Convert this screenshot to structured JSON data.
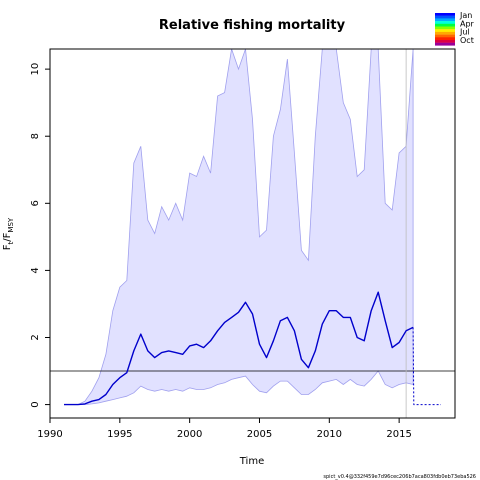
{
  "chart_data": {
    "type": "line",
    "title": "Relative fishing mortality",
    "xlabel": "Time",
    "ylabel": {
      "base": "F",
      "sub1": "t",
      "mid": "/F",
      "sub2": "MSY"
    },
    "xlim": [
      1990,
      2019
    ],
    "ylim": [
      -0.4,
      10.6
    ],
    "x_ticks": [
      1990,
      1995,
      2000,
      2005,
      2010,
      2015
    ],
    "y_ticks": [
      0,
      2,
      4,
      6,
      8,
      10
    ],
    "reference_line": 1,
    "forecast_start": 2015.5,
    "legend": {
      "position": "top-right",
      "entries": [
        "Jan",
        "Apr",
        "Jul",
        "Oct"
      ]
    },
    "footer": "spict_v0.4@332f459e7d96cec206b7aca803fdb0eb73eba526",
    "series": [
      {
        "role": "estimate",
        "color": "#0000cc",
        "x": [
          1991,
          1992,
          1992.5,
          1993,
          1993.5,
          1994,
          1994.5,
          1995,
          1995.5,
          1996,
          1996.5,
          1997,
          1997.5,
          1998,
          1998.5,
          1999,
          1999.5,
          2000,
          2000.5,
          2001,
          2001.5,
          2002,
          2002.5,
          2003,
          2003.5,
          2004,
          2004.5,
          2005,
          2005.5,
          2006,
          2006.5,
          2007,
          2007.5,
          2008,
          2008.5,
          2009,
          2009.5,
          2010,
          2010.5,
          2011,
          2011.5,
          2012,
          2012.5,
          2013,
          2013.5,
          2014,
          2014.5,
          2015,
          2015.5,
          2016
        ],
        "values": [
          0,
          0,
          0.02,
          0.1,
          0.15,
          0.3,
          0.6,
          0.8,
          0.95,
          1.6,
          2.1,
          1.6,
          1.4,
          1.55,
          1.6,
          1.55,
          1.5,
          1.75,
          1.8,
          1.7,
          1.9,
          2.2,
          2.45,
          2.6,
          2.75,
          3.05,
          2.7,
          1.8,
          1.4,
          1.9,
          2.5,
          2.6,
          2.2,
          1.35,
          1.1,
          1.6,
          2.4,
          2.8,
          2.8,
          2.6,
          2.6,
          2.0,
          1.9,
          2.8,
          3.35,
          2.5,
          1.7,
          1.85,
          2.2,
          2.3
        ]
      },
      {
        "role": "forecast",
        "color": "#0000cc",
        "x": [
          2016,
          2016.05,
          2018
        ],
        "values": [
          2.3,
          0,
          0
        ]
      }
    ],
    "confidence_band": {
      "x": [
        1991,
        1992,
        1992.5,
        1993,
        1993.5,
        1994,
        1994.5,
        1995,
        1995.5,
        1996,
        1996.5,
        1997,
        1997.5,
        1998,
        1998.5,
        1999,
        1999.5,
        2000,
        2000.5,
        2001,
        2001.5,
        2002,
        2002.5,
        2003,
        2003.5,
        2004,
        2004.5,
        2005,
        2005.5,
        2006,
        2006.5,
        2007,
        2007.5,
        2008,
        2008.5,
        2009,
        2009.5,
        2010,
        2010.5,
        2011,
        2011.5,
        2012,
        2012.5,
        2013,
        2013.5,
        2014,
        2014.5,
        2015,
        2015.5,
        2016
      ],
      "upper": [
        0,
        0,
        0.1,
        0.4,
        0.8,
        1.5,
        2.8,
        3.5,
        3.7,
        7.2,
        7.7,
        5.5,
        5.1,
        5.9,
        5.5,
        6.0,
        5.5,
        6.9,
        6.8,
        7.4,
        6.9,
        9.2,
        9.3,
        10.8,
        10.0,
        10.8,
        8.5,
        5.0,
        5.2,
        8.0,
        8.8,
        10.3,
        7.5,
        4.6,
        4.3,
        8.0,
        10.8,
        10.8,
        10.8,
        9.0,
        8.5,
        6.8,
        7.0,
        10.8,
        10.8,
        6.0,
        5.8,
        7.5,
        7.7,
        10.8
      ],
      "lower": [
        0,
        0,
        0,
        0.02,
        0.05,
        0.1,
        0.15,
        0.2,
        0.25,
        0.35,
        0.55,
        0.45,
        0.4,
        0.45,
        0.4,
        0.45,
        0.4,
        0.5,
        0.45,
        0.45,
        0.5,
        0.6,
        0.65,
        0.75,
        0.8,
        0.85,
        0.6,
        0.4,
        0.35,
        0.55,
        0.7,
        0.7,
        0.5,
        0.3,
        0.3,
        0.45,
        0.65,
        0.7,
        0.75,
        0.6,
        0.75,
        0.6,
        0.55,
        0.75,
        1.0,
        0.6,
        0.5,
        0.6,
        0.65,
        0.6
      ]
    }
  }
}
